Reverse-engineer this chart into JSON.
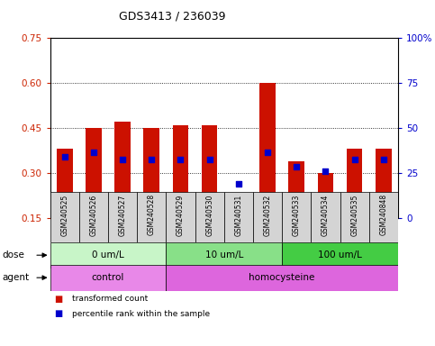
{
  "title": "GDS3413 / 236039",
  "samples": [
    "GSM240525",
    "GSM240526",
    "GSM240527",
    "GSM240528",
    "GSM240529",
    "GSM240530",
    "GSM240531",
    "GSM240532",
    "GSM240533",
    "GSM240534",
    "GSM240535",
    "GSM240848"
  ],
  "red_values": [
    0.38,
    0.45,
    0.47,
    0.45,
    0.46,
    0.46,
    0.155,
    0.6,
    0.34,
    0.3,
    0.38,
    0.38
  ],
  "blue_values": [
    0.355,
    0.37,
    0.345,
    0.345,
    0.345,
    0.345,
    0.265,
    0.37,
    0.32,
    0.305,
    0.345,
    0.345
  ],
  "dose_groups": [
    {
      "label": "0 um/L",
      "start": 0,
      "end": 4,
      "color": "#c8f5c8"
    },
    {
      "label": "10 um/L",
      "start": 4,
      "end": 8,
      "color": "#88e088"
    },
    {
      "label": "100 um/L",
      "start": 8,
      "end": 12,
      "color": "#44cc44"
    }
  ],
  "agent_groups": [
    {
      "label": "control",
      "start": 0,
      "end": 4,
      "color": "#e888e8"
    },
    {
      "label": "homocysteine",
      "start": 4,
      "end": 12,
      "color": "#dd66dd"
    }
  ],
  "ylim_left": [
    0.15,
    0.75
  ],
  "ylim_right": [
    0,
    100
  ],
  "yticks_left": [
    0.15,
    0.3,
    0.45,
    0.6,
    0.75
  ],
  "ytick_labels_left": [
    "0.15",
    "0.30",
    "0.45",
    "0.60",
    "0.75"
  ],
  "yticks_right": [
    0,
    25,
    50,
    75,
    100
  ],
  "ytick_labels_right": [
    "0",
    "25",
    "50",
    "75",
    "100%"
  ],
  "bar_color": "#cc1100",
  "dot_color": "#0000cc",
  "bar_width": 0.55,
  "background_color": "#ffffff",
  "plot_bg": "#ffffff",
  "left_axis_color": "#cc2200",
  "right_axis_color": "#0000cc",
  "grid_color": "#000000",
  "label_bg": "#d4d4d4"
}
